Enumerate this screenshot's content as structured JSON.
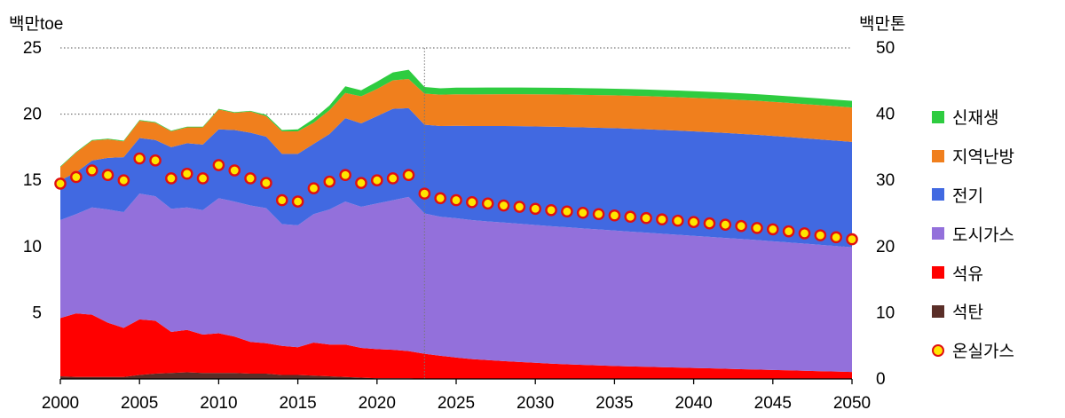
{
  "chart_data": {
    "type": "area",
    "left_axis_unit": "백만toe",
    "right_axis_unit": "백만톤",
    "y_left_lim": [
      0,
      25
    ],
    "y_left_ticks": [
      "5",
      "10",
      "15",
      "20",
      "25"
    ],
    "y_right_lim": [
      0,
      50
    ],
    "y_right_ticks": [
      "0",
      "10",
      "20",
      "30",
      "40",
      "50"
    ],
    "x_lim": [
      2000,
      2050
    ],
    "x_ticks": [
      "2000",
      "2005",
      "2010",
      "2015",
      "2020",
      "2025",
      "2030",
      "2035",
      "2040",
      "2045",
      "2050"
    ],
    "grid": "horizontal dotted",
    "legend_placement": "right",
    "vertical_marker_year": 2023,
    "x": [
      2000,
      2001,
      2002,
      2003,
      2004,
      2005,
      2006,
      2007,
      2008,
      2009,
      2010,
      2011,
      2012,
      2013,
      2014,
      2015,
      2016,
      2017,
      2018,
      2019,
      2020,
      2021,
      2022,
      2023,
      2024,
      2025,
      2026,
      2027,
      2028,
      2029,
      2030,
      2031,
      2032,
      2033,
      2034,
      2035,
      2036,
      2037,
      2038,
      2039,
      2040,
      2041,
      2042,
      2043,
      2044,
      2045,
      2046,
      2047,
      2048,
      2049,
      2050
    ],
    "stacked_series": [
      {
        "name": "석탄",
        "color": "#5a2e28",
        "values": [
          0.2,
          0.15,
          0.15,
          0.15,
          0.15,
          0.3,
          0.4,
          0.45,
          0.5,
          0.45,
          0.45,
          0.45,
          0.4,
          0.4,
          0.3,
          0.3,
          0.25,
          0.2,
          0.15,
          0.1,
          0.05,
          0.05,
          0.05,
          0.0,
          0,
          0,
          0,
          0,
          0,
          0,
          0,
          0,
          0,
          0,
          0,
          0,
          0,
          0,
          0,
          0,
          0,
          0,
          0,
          0,
          0,
          0,
          0,
          0,
          0,
          0,
          0
        ]
      },
      {
        "name": "석유",
        "color": "#ff0000",
        "values": [
          4.4,
          4.8,
          4.7,
          4.1,
          3.7,
          4.2,
          4.0,
          3.1,
          3.2,
          2.9,
          3.0,
          2.75,
          2.4,
          2.3,
          2.2,
          2.1,
          2.5,
          2.4,
          2.45,
          2.25,
          2.2,
          2.15,
          2.05,
          1.9,
          1.75,
          1.62,
          1.5,
          1.42,
          1.35,
          1.28,
          1.22,
          1.16,
          1.11,
          1.06,
          1.02,
          0.98,
          0.95,
          0.92,
          0.89,
          0.86,
          0.83,
          0.8,
          0.77,
          0.74,
          0.71,
          0.68,
          0.65,
          0.62,
          0.59,
          0.56,
          0.53
        ]
      },
      {
        "name": "도시가스",
        "color": "#9370db",
        "values": [
          7.4,
          7.5,
          8.1,
          8.55,
          8.75,
          9.5,
          9.4,
          9.3,
          9.25,
          9.4,
          10.2,
          10.2,
          10.3,
          10.2,
          9.2,
          9.2,
          9.7,
          10.2,
          10.8,
          10.65,
          11.0,
          11.3,
          11.65,
          10.6,
          10.5,
          10.52,
          10.5,
          10.48,
          10.46,
          10.44,
          10.41,
          10.38,
          10.35,
          10.31,
          10.27,
          10.23,
          10.18,
          10.13,
          10.08,
          10.03,
          9.98,
          9.93,
          9.88,
          9.83,
          9.78,
          9.72,
          9.66,
          9.6,
          9.54,
          9.48,
          9.42
        ]
      },
      {
        "name": "전기",
        "color": "#4169e1",
        "values": [
          3.0,
          3.15,
          3.55,
          3.9,
          4.15,
          4.2,
          4.25,
          4.65,
          4.85,
          4.95,
          5.2,
          5.4,
          5.5,
          5.4,
          5.3,
          5.4,
          5.3,
          5.7,
          6.3,
          6.3,
          6.6,
          6.9,
          6.7,
          6.7,
          6.85,
          6.98,
          7.1,
          7.2,
          7.29,
          7.37,
          7.44,
          7.51,
          7.57,
          7.63,
          7.68,
          7.73,
          7.77,
          7.81,
          7.84,
          7.87,
          7.89,
          7.91,
          7.93,
          7.94,
          7.95,
          7.96,
          7.96,
          7.96,
          7.96,
          7.96,
          7.95
        ]
      },
      {
        "name": "지역난방",
        "color": "#f07f1d",
        "values": [
          1.0,
          1.5,
          1.5,
          1.4,
          1.2,
          1.3,
          1.3,
          1.2,
          1.2,
          1.3,
          1.5,
          1.3,
          1.6,
          1.55,
          1.7,
          1.7,
          1.6,
          1.8,
          1.9,
          2.05,
          2.05,
          2.15,
          2.2,
          2.35,
          2.37,
          2.38,
          2.39,
          2.4,
          2.41,
          2.42,
          2.43,
          2.44,
          2.45,
          2.46,
          2.47,
          2.48,
          2.49,
          2.5,
          2.51,
          2.52,
          2.53,
          2.54,
          2.55,
          2.56,
          2.57,
          2.57,
          2.58,
          2.58,
          2.59,
          2.59,
          2.6
        ]
      },
      {
        "name": "신재생",
        "color": "#2ecc40",
        "values": [
          0.05,
          0.05,
          0.05,
          0.05,
          0.05,
          0.05,
          0.05,
          0.05,
          0.05,
          0.05,
          0.05,
          0.05,
          0.05,
          0.1,
          0.1,
          0.15,
          0.3,
          0.35,
          0.5,
          0.45,
          0.55,
          0.6,
          0.7,
          0.5,
          0.48,
          0.5,
          0.51,
          0.51,
          0.5,
          0.5,
          0.5,
          0.5,
          0.5,
          0.5,
          0.5,
          0.5,
          0.5,
          0.5,
          0.5,
          0.5,
          0.5,
          0.5,
          0.5,
          0.5,
          0.5,
          0.5,
          0.5,
          0.5,
          0.5,
          0.5,
          0.5
        ]
      }
    ],
    "marker_series": {
      "name": "온실가스",
      "axis": "right",
      "color": "#ffe600",
      "edge_color": "#e01010",
      "values": [
        29.5,
        30.5,
        31.5,
        30.8,
        30.0,
        33.3,
        33.0,
        30.3,
        31.0,
        30.3,
        32.3,
        31.5,
        30.3,
        29.6,
        27.0,
        26.8,
        28.8,
        29.8,
        30.8,
        29.6,
        30.0,
        30.3,
        30.8,
        28.0,
        27.3,
        27.0,
        26.7,
        26.5,
        26.2,
        26.0,
        25.7,
        25.5,
        25.3,
        25.1,
        24.9,
        24.7,
        24.5,
        24.3,
        24.1,
        23.9,
        23.7,
        23.5,
        23.3,
        23.1,
        22.8,
        22.6,
        22.3,
        22.0,
        21.7,
        21.4,
        21.1
      ]
    },
    "legend_order": [
      "신재생",
      "지역난방",
      "전기",
      "도시가스",
      "석유",
      "석탄",
      "온실가스"
    ]
  }
}
